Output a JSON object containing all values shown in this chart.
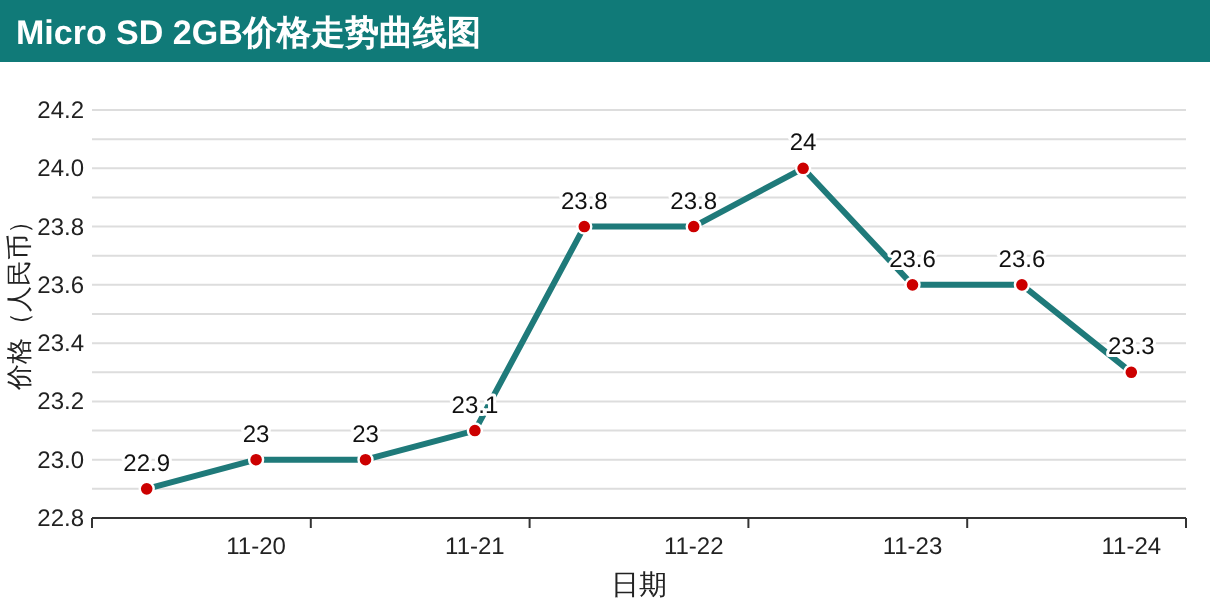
{
  "chart_data": {
    "type": "line",
    "title": "Micro SD 2GB价格走势曲线图",
    "xlabel": "日期",
    "ylabel": "价格（人民币）",
    "categories": [
      null,
      "11-20",
      null,
      "11-21",
      null,
      "11-22",
      null,
      "11-23",
      null,
      "11-24"
    ],
    "series": [
      {
        "color": "#1f7a7a",
        "values": [
          22.9,
          23,
          23,
          23.1,
          23.8,
          23.8,
          24,
          23.6,
          23.6,
          23.3
        ]
      }
    ],
    "ylim": [
      22.8,
      24.2
    ],
    "yticks": [
      {
        "value": 22.8,
        "label": "22.8"
      },
      {
        "value": 22.9,
        "label": null
      },
      {
        "value": 23.0,
        "label": "23.0"
      },
      {
        "value": 23.1,
        "label": null
      },
      {
        "value": 23.2,
        "label": "23.2"
      },
      {
        "value": 23.3,
        "label": null
      },
      {
        "value": 23.4,
        "label": "23.4"
      },
      {
        "value": 23.5,
        "label": null
      },
      {
        "value": 23.6,
        "label": "23.6"
      },
      {
        "value": 23.7,
        "label": null
      },
      {
        "value": 23.8,
        "label": "23.8"
      },
      {
        "value": 23.9,
        "label": null
      },
      {
        "value": 24.0,
        "label": "24.0"
      },
      {
        "value": 24.1,
        "label": null
      },
      {
        "value": 24.2,
        "label": "24.2"
      }
    ],
    "grid": "y",
    "marker": "circle",
    "line_style": "solid",
    "data_labels": true
  }
}
